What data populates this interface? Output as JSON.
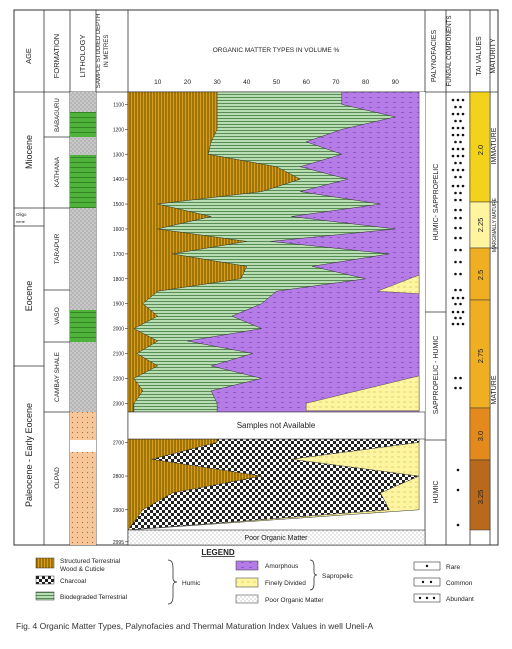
{
  "headers": {
    "age": "AGE",
    "formation": "FORMATION",
    "lithology": "LITHOLOGY",
    "sample": "SAMPLE STUDIED DEPTH IN METRES",
    "chart_title": "ORGANIC MATTER TYPES IN VOLUME %",
    "palynofacies": "PALYNOFACIES",
    "fungal": "FUNGAL COMPONENTS",
    "tai": "TAI VALUES",
    "maturity": "MATURITY"
  },
  "ages": [
    "Miocene",
    "Oligo\nnene",
    "Eocene",
    "Paleocene - Early Eocene"
  ],
  "formations": [
    "BABAGURU",
    "KATHANA",
    "TARAPUR",
    "VASO",
    "CAMBAY SHALE",
    "OLPAD"
  ],
  "palynofacies": [
    "HUMIC- SAPPROPELIC",
    "SAPPROPELIC - HUMIC",
    "HUMIC"
  ],
  "tai_values": [
    "2.0",
    "2.25",
    "2.5",
    "2.75",
    "3.0",
    "3.25"
  ],
  "maturity": [
    "IMMATURE",
    "MARGINALLY MATURE",
    "MATURE"
  ],
  "annotations": {
    "not_available": "Samples not Available",
    "poor_om": "Poor Organic Matter"
  },
  "legend": {
    "title": "LEGEND",
    "structured": "Structured Terrestrial Wood & Cuticle",
    "charcoal": "Charcoal",
    "biodegraded": "Biodegraded Terrestrial",
    "humic": "Humic",
    "amorphous": "Amorphous",
    "finely_divided": "Finely Divided",
    "sapropelic": "Sapropelic",
    "poor": "Poor Organic Matter",
    "rare": "Rare",
    "common": "Common",
    "abundant": "Abundant"
  },
  "caption": "Fig. 4   Organic Matter Types, Palynofacies and Thermal Maturation Index Values in well Uneli-A",
  "colors": {
    "structured": "#d8a010",
    "biodegraded": "#b8dcb4",
    "amorphous": "#b57ce8",
    "finely_divided": "#fff4a0",
    "tai_light": "#f4e6a0",
    "tai_yellow": "#f2d21a",
    "tai_amber": "#f0ae22",
    "tai_orange": "#e48a1c",
    "tai_brown": "#b8691c"
  },
  "chart_data": {
    "type": "area",
    "title": "ORGANIC MATTER TYPES IN VOLUME %",
    "xlabel": "",
    "ylabel": "SAMPLE STUDIED DEPTH IN METRES",
    "x_ticks": [
      10,
      20,
      30,
      40,
      50,
      60,
      70,
      80,
      90
    ],
    "xlim": [
      0,
      100
    ],
    "y_ticks_upper": [
      1100,
      1200,
      1300,
      1400,
      1500,
      1600,
      1700,
      1800,
      1900,
      2000,
      2100,
      2200,
      2300
    ],
    "y_ticks_lower": [
      2700,
      2800,
      2900,
      2995
    ],
    "depth": [
      1100,
      1150,
      1200,
      1250,
      1300,
      1350,
      1400,
      1450,
      1500,
      1550,
      1600,
      1650,
      1700,
      1750,
      1800,
      1850,
      1900,
      1950,
      2000,
      2050,
      2100,
      2150,
      2200,
      2250,
      2300
    ],
    "series": [
      {
        "name": "Structured Terrestrial Wood & Cuticle",
        "cumulative": [
          30,
          30,
          30,
          28,
          27,
          50,
          58,
          45,
          10,
          28,
          10,
          40,
          15,
          40,
          38,
          10,
          5,
          10,
          2,
          10,
          3,
          10,
          2,
          5,
          2
        ]
      },
      {
        "name": "Biodegraded Terrestrial",
        "cumulative": [
          72,
          90,
          72,
          60,
          72,
          58,
          74,
          58,
          85,
          55,
          90,
          48,
          88,
          62,
          80,
          50,
          45,
          35,
          45,
          20,
          42,
          28,
          45,
          28,
          30
        ]
      },
      {
        "name": "Amorphous",
        "cumulative": [
          98,
          98,
          98,
          98,
          98,
          98,
          98,
          98,
          98,
          98,
          98,
          98,
          98,
          98,
          98,
          98,
          98,
          98,
          98,
          98,
          98,
          98,
          98,
          98,
          98
        ]
      }
    ],
    "lower_depth": [
      2700,
      2750,
      2800,
      2850,
      2900,
      2950
    ],
    "lower_series": [
      {
        "name": "Structured Terrestrial Wood & Cuticle",
        "cumulative": [
          30,
          8,
          45,
          15,
          5,
          0
        ]
      },
      {
        "name": "Charcoal",
        "cumulative": [
          98,
          55,
          98,
          85,
          88,
          0
        ]
      },
      {
        "name": "Finely Divided",
        "cumulative": [
          98,
          98,
          98,
          98,
          98,
          0
        ]
      }
    ]
  }
}
